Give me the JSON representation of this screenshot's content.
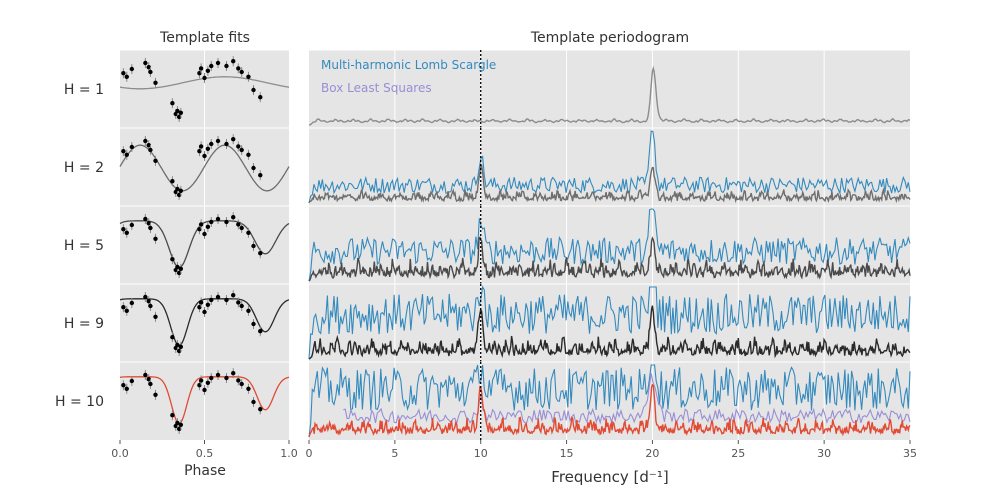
{
  "left_panel": {
    "title": "Template fits",
    "xlabel": "Phase",
    "xticks": [
      "0.0",
      "0.5",
      "1.0"
    ],
    "row_labels": [
      "H = 1",
      "H = 2",
      "H = 5",
      "H = 9",
      "H = 10"
    ]
  },
  "right_panel": {
    "title": "Template periodogram",
    "xlabel": "Frequency [d⁻¹]",
    "xticks": [
      "0",
      "5",
      "10",
      "15",
      "20",
      "25",
      "30",
      "35"
    ]
  },
  "legend": {
    "mhls_label": "Multi-harmonic Lomb Scargle",
    "bls_label": "Box Least Squares"
  },
  "colors": {
    "panel_bg": "#e5e5e5",
    "grid": "#ffffff",
    "mhls": "#348abd",
    "bls": "#988ed5",
    "template_h1": "#8c8c8c",
    "template_h2": "#6e6e6e",
    "template_h5": "#4a4a4a",
    "template_h9": "#2a2a2a",
    "template_h10": "#e24a33",
    "dotted_line": "#000000"
  },
  "chart_data": [
    {
      "type": "scatter",
      "title": "Template fits",
      "xlabel": "Phase",
      "xlim": [
        0,
        1
      ],
      "rows": [
        {
          "label": "H = 1",
          "model": "sinusoid",
          "harmonics": 1
        },
        {
          "label": "H = 2",
          "model": "template",
          "harmonics": 2
        },
        {
          "label": "H = 5",
          "model": "template",
          "harmonics": 5
        },
        {
          "label": "H = 9",
          "model": "template",
          "harmonics": 9
        },
        {
          "label": "H = 10",
          "model": "template",
          "harmonics": 10
        }
      ],
      "observations": {
        "phase": [
          0.02,
          0.04,
          0.07,
          0.15,
          0.17,
          0.18,
          0.21,
          0.31,
          0.33,
          0.34,
          0.35,
          0.36,
          0.47,
          0.48,
          0.5,
          0.52,
          0.54,
          0.58,
          0.63,
          0.67,
          0.7,
          0.72,
          0.76,
          0.79,
          0.83
        ],
        "magnitude_normalized": [
          0.78,
          0.72,
          0.85,
          0.95,
          0.88,
          0.8,
          0.62,
          0.28,
          0.1,
          0.15,
          0.05,
          0.12,
          0.78,
          0.86,
          0.7,
          0.82,
          0.9,
          0.95,
          0.9,
          0.98,
          0.86,
          0.8,
          0.72,
          0.5,
          0.38
        ]
      }
    },
    {
      "type": "line",
      "title": "Template periodogram",
      "xlabel": "Frequency [d^-1]",
      "xlim": [
        0,
        35
      ],
      "reference_line": {
        "x": 10,
        "style": "dotted"
      },
      "rows": [
        "H = 1",
        "H = 2",
        "H = 5",
        "H = 9",
        "H = 10"
      ],
      "series": [
        {
          "name": "Multi-harmonic Lomb Scargle",
          "rows": [
            "H = 2",
            "H = 5",
            "H = 9",
            "H = 10"
          ],
          "peaks": [
            10.0,
            20.0
          ]
        },
        {
          "name": "Box Least Squares",
          "rows": [
            "H = 10"
          ],
          "x_range": [
            2,
            35
          ]
        }
      ],
      "template_peaks": {
        "H = 1": [
          20.0
        ],
        "H = 2": [
          10.0,
          20.0
        ],
        "H = 5": [
          10.0,
          20.0
        ],
        "H = 9": [
          10.0,
          20.0
        ],
        "H = 10": [
          10.0,
          20.0
        ]
      }
    }
  ]
}
